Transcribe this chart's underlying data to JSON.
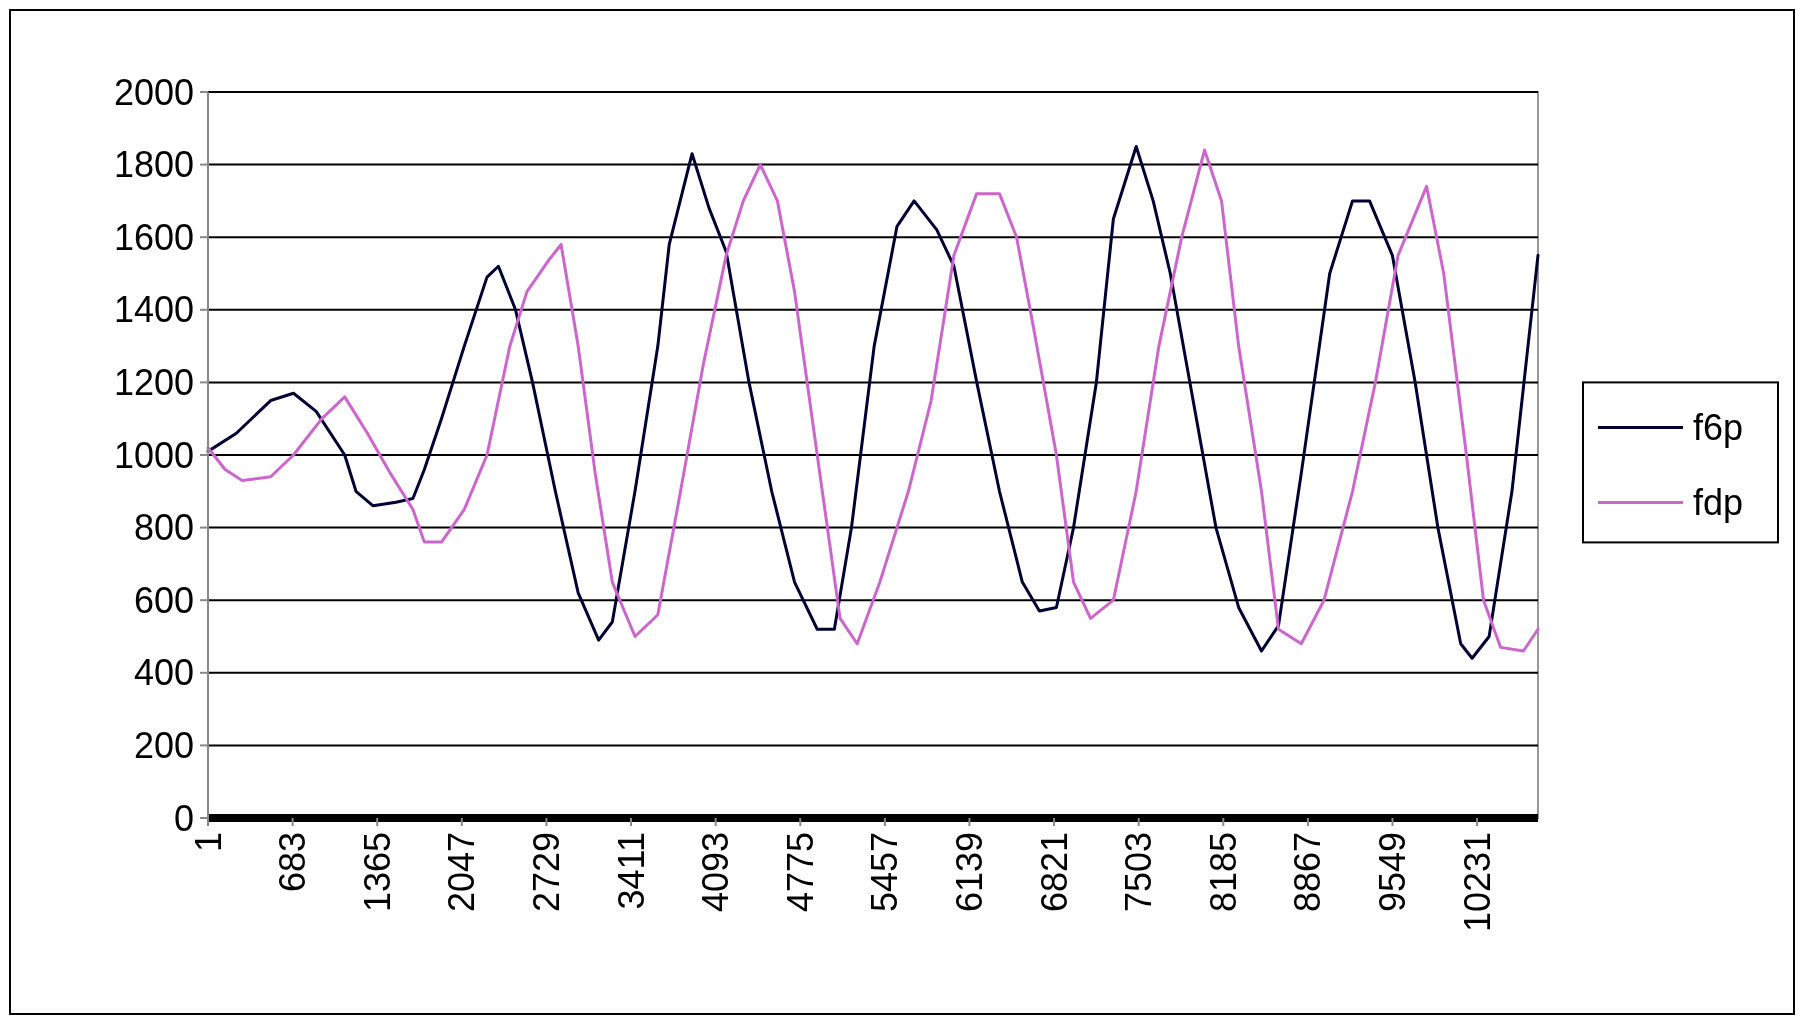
{
  "chart_data": {
    "type": "line",
    "xlim": [
      1,
      10722
    ],
    "xticks": [
      1,
      683,
      1365,
      2047,
      2729,
      3411,
      4093,
      4775,
      5457,
      6139,
      6821,
      7503,
      8185,
      8867,
      9549,
      10231
    ],
    "ylim": [
      0,
      2000
    ],
    "yticks": [
      0,
      200,
      400,
      600,
      800,
      1000,
      1200,
      1400,
      1600,
      1800,
      2000
    ],
    "grid": "y",
    "legend": "right",
    "marker": "none",
    "line_style": "solid",
    "series": [
      {
        "name": "f6p",
        "color": "#000033",
        "x": [
          1,
          230,
          506,
          690,
          873,
          1103,
          1194,
          1332,
          1516,
          1653,
          1745,
          1883,
          2067,
          2250,
          2342,
          2480,
          2617,
          2801,
          2985,
          3150,
          3260,
          3443,
          3627,
          3719,
          3903,
          4040,
          4178,
          4362,
          4545,
          4729,
          4912,
          5050,
          5188,
          5371,
          5555,
          5693,
          5876,
          6014,
          6198,
          6381,
          6565,
          6703,
          6840,
          6978,
          7162,
          7299,
          7483,
          7620,
          7758,
          7942,
          8126,
          8309,
          8493,
          8630,
          8814,
          9043,
          9227,
          9364,
          9548,
          9732,
          9915,
          10099,
          10191,
          10328,
          10512,
          10722
        ],
        "values": [
          1010,
          1060,
          1150,
          1170,
          1120,
          1000,
          900,
          860,
          870,
          880,
          960,
          1100,
          1300,
          1490,
          1520,
          1400,
          1200,
          900,
          620,
          490,
          540,
          900,
          1300,
          1580,
          1830,
          1680,
          1560,
          1200,
          900,
          650,
          520,
          520,
          800,
          1300,
          1630,
          1700,
          1620,
          1520,
          1200,
          900,
          650,
          570,
          580,
          800,
          1200,
          1650,
          1850,
          1700,
          1500,
          1150,
          800,
          580,
          460,
          530,
          950,
          1500,
          1700,
          1700,
          1550,
          1200,
          800,
          480,
          440,
          500,
          900,
          1550
        ]
      },
      {
        "name": "fdp",
        "color": "#cc66cc",
        "x": [
          1,
          139,
          276,
          506,
          690,
          919,
          1103,
          1286,
          1470,
          1653,
          1745,
          1883,
          2067,
          2250,
          2434,
          2572,
          2755,
          2847,
          2985,
          3122,
          3260,
          3443,
          3627,
          3810,
          3994,
          4178,
          4316,
          4453,
          4591,
          4729,
          4912,
          5096,
          5234,
          5417,
          5647,
          5830,
          6014,
          6197,
          6381,
          6519,
          6656,
          6840,
          6978,
          7115,
          7299,
          7483,
          7666,
          7850,
          8034,
          8171,
          8309,
          8493,
          8630,
          8814,
          8997,
          9227,
          9411,
          9594,
          9824,
          9962,
          10145,
          10283,
          10421,
          10604,
          10722
        ],
        "values": [
          1020,
          960,
          930,
          940,
          1000,
          1100,
          1160,
          1060,
          950,
          850,
          760,
          760,
          850,
          1000,
          1300,
          1450,
          1540,
          1580,
          1300,
          950,
          650,
          500,
          560,
          900,
          1250,
          1550,
          1700,
          1800,
          1700,
          1450,
          1000,
          550,
          480,
          650,
          900,
          1150,
          1550,
          1720,
          1720,
          1600,
          1350,
          1000,
          650,
          550,
          600,
          900,
          1300,
          1600,
          1840,
          1700,
          1300,
          900,
          520,
          480,
          600,
          900,
          1200,
          1550,
          1740,
          1500,
          1000,
          600,
          470,
          460,
          520
        ]
      }
    ]
  }
}
